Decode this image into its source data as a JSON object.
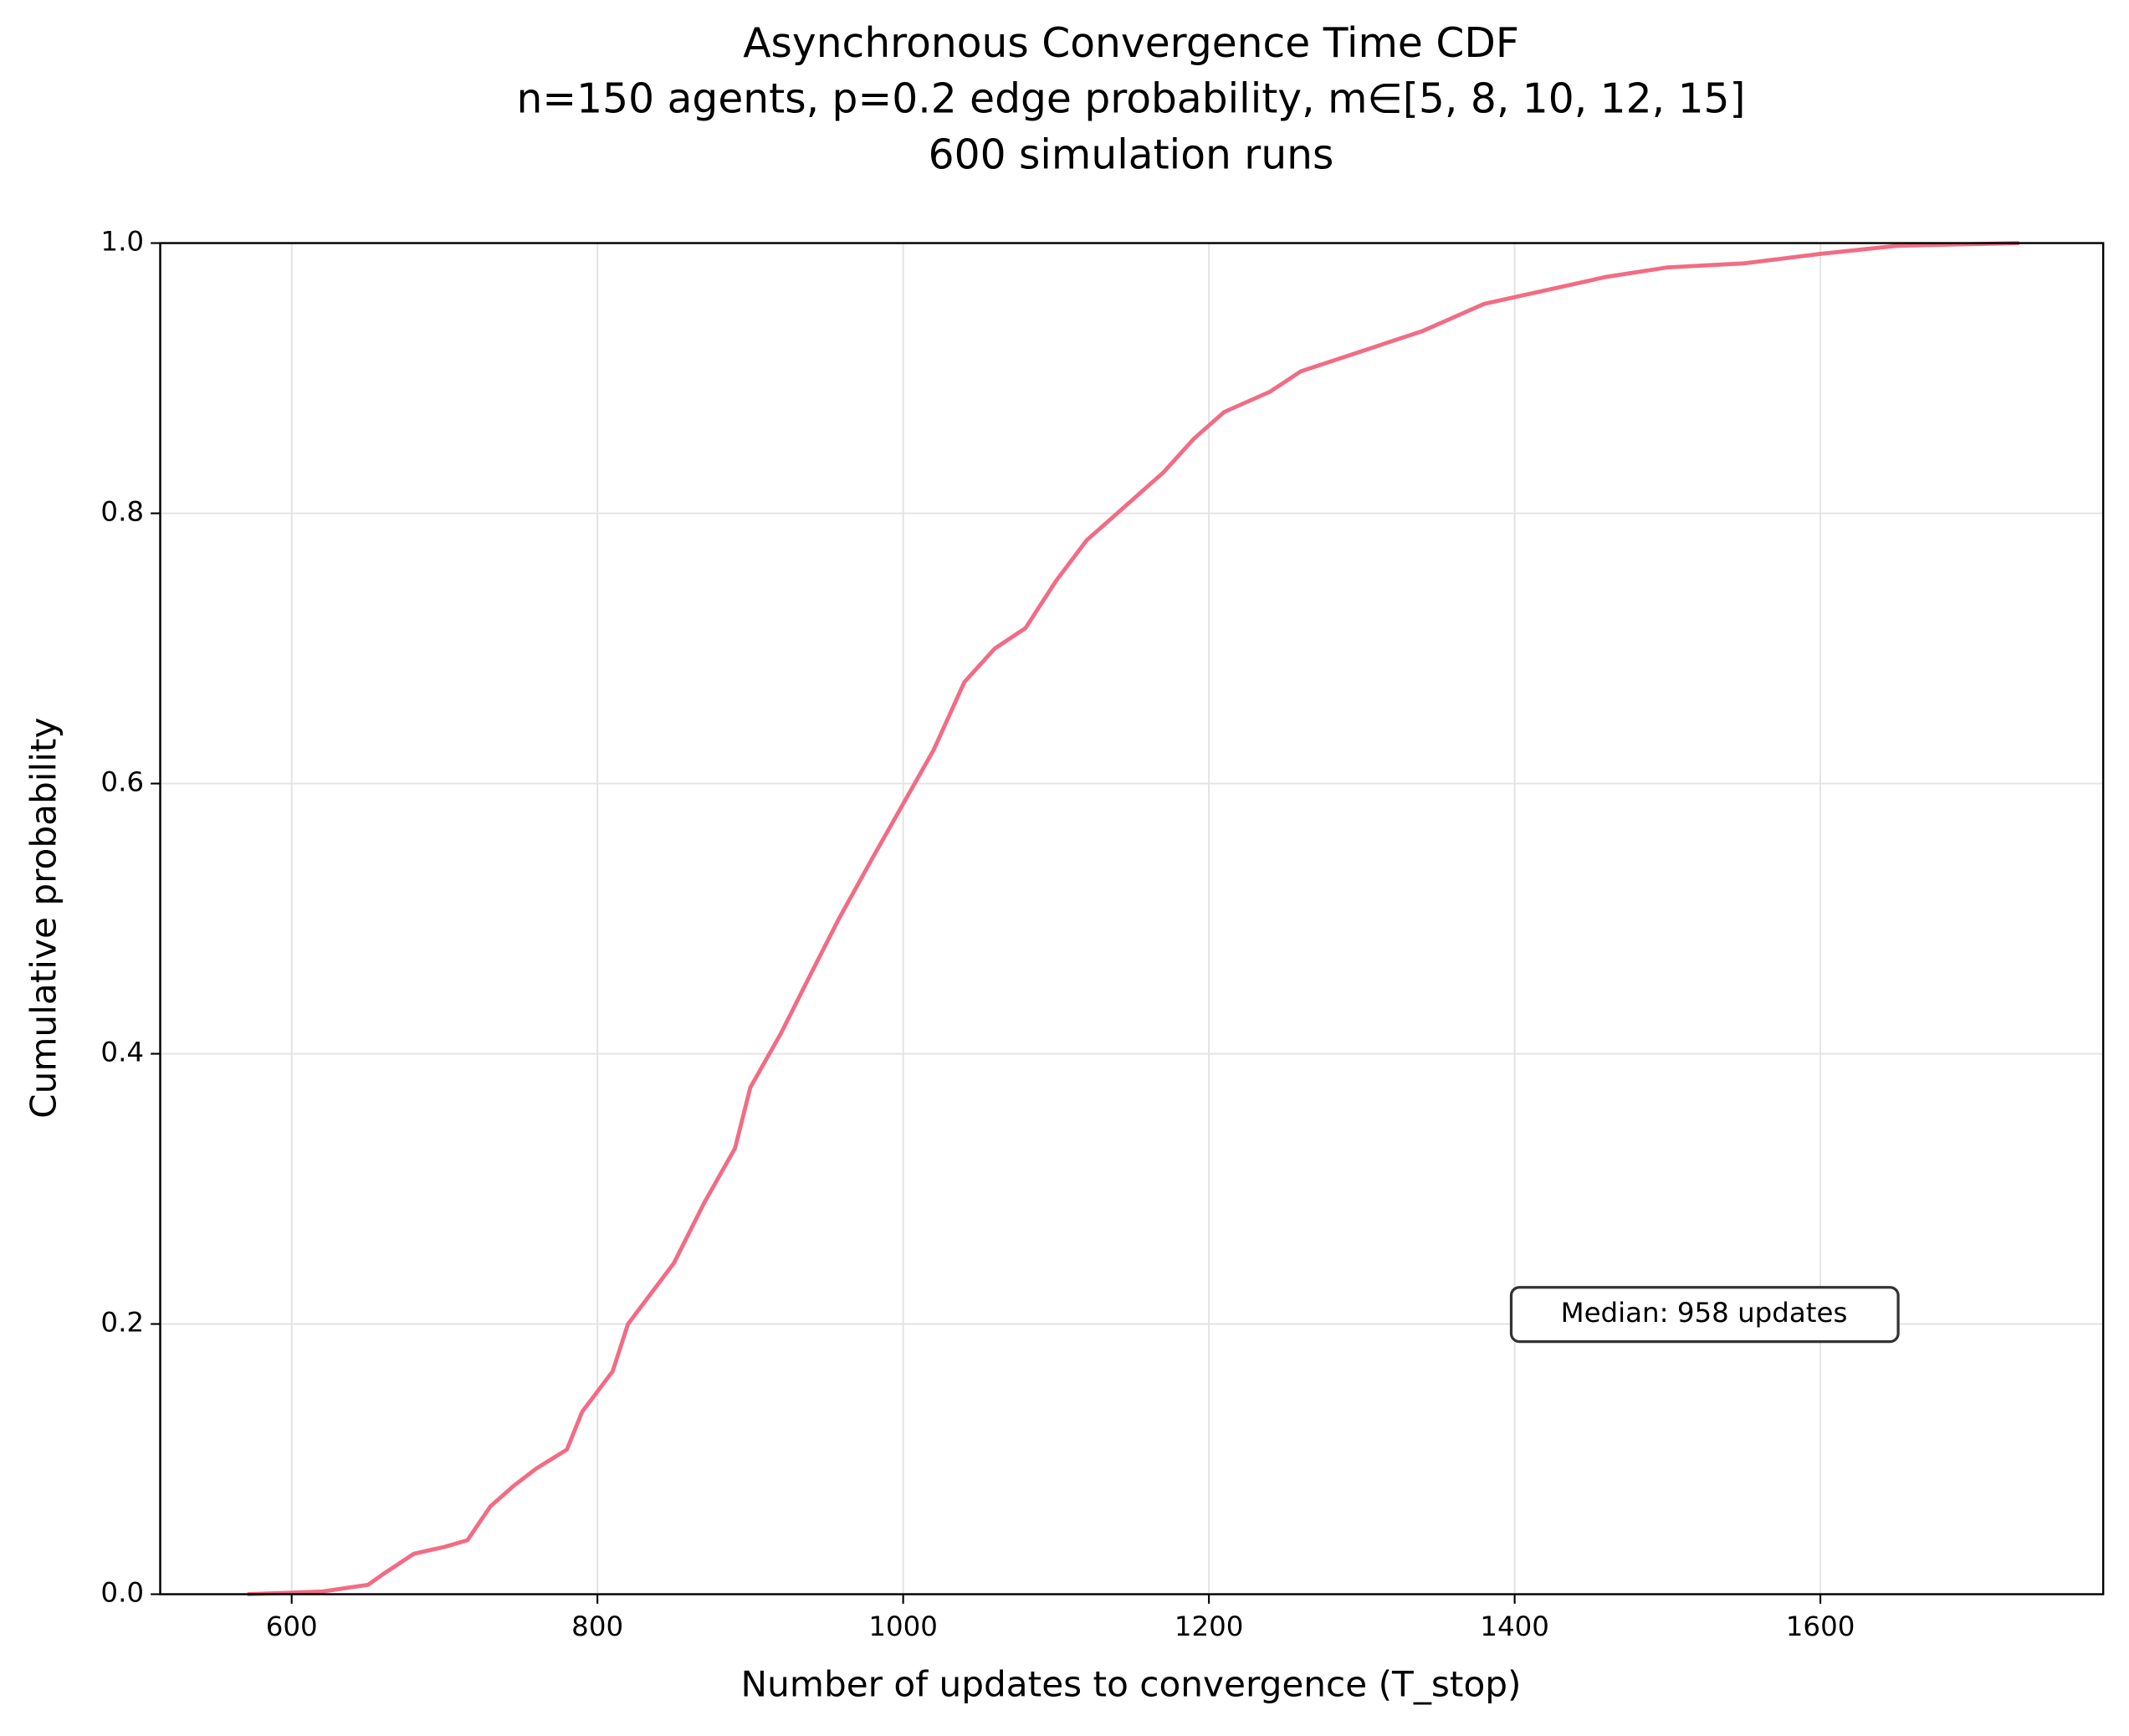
{
  "chart_data": {
    "type": "line",
    "title": "Asynchronous Convergence Time CDF",
    "subtitle": [
      "n=150 agents, p=0.2 edge probability, m∈[5, 8, 10, 12, 15]",
      "600 simulation runs"
    ],
    "x_label": "Number of updates to convergence (T_stop)",
    "y_label": "Cumulative probability",
    "annotation": "Median: 958 updates",
    "x": [
      571,
      620,
      650,
      660,
      680,
      700,
      715,
      730,
      745,
      760,
      780,
      790,
      810,
      820,
      830,
      850,
      870,
      890,
      900,
      920,
      940,
      958,
      980,
      1000,
      1020,
      1040,
      1060,
      1080,
      1100,
      1120,
      1140,
      1170,
      1190,
      1210,
      1240,
      1260,
      1300,
      1340,
      1380,
      1420,
      1460,
      1500,
      1550,
      1600,
      1650,
      1730
    ],
    "series": [
      {
        "color": "#f16c84",
        "values": [
          0.0,
          0.002,
          0.007,
          0.015,
          0.03,
          0.035,
          0.04,
          0.065,
          0.08,
          0.093,
          0.107,
          0.135,
          0.165,
          0.2,
          0.215,
          0.245,
          0.29,
          0.33,
          0.375,
          0.415,
          0.46,
          0.5,
          0.545,
          0.585,
          0.625,
          0.675,
          0.7,
          0.715,
          0.75,
          0.78,
          0.8,
          0.83,
          0.855,
          0.875,
          0.89,
          0.905,
          0.92,
          0.935,
          0.955,
          0.965,
          0.975,
          0.982,
          0.985,
          0.992,
          0.998,
          1.0
        ]
      }
    ],
    "xlim": [
      514,
      1785
    ],
    "ylim": [
      0,
      1
    ],
    "xticks": [
      600,
      800,
      1000,
      1200,
      1400,
      1600
    ],
    "yticks": [
      {
        "value": 0,
        "label": "0.0"
      },
      0.2,
      0.4,
      0.6,
      0.8,
      {
        "value": 1,
        "label": "1.0"
      }
    ],
    "grid": true
  }
}
